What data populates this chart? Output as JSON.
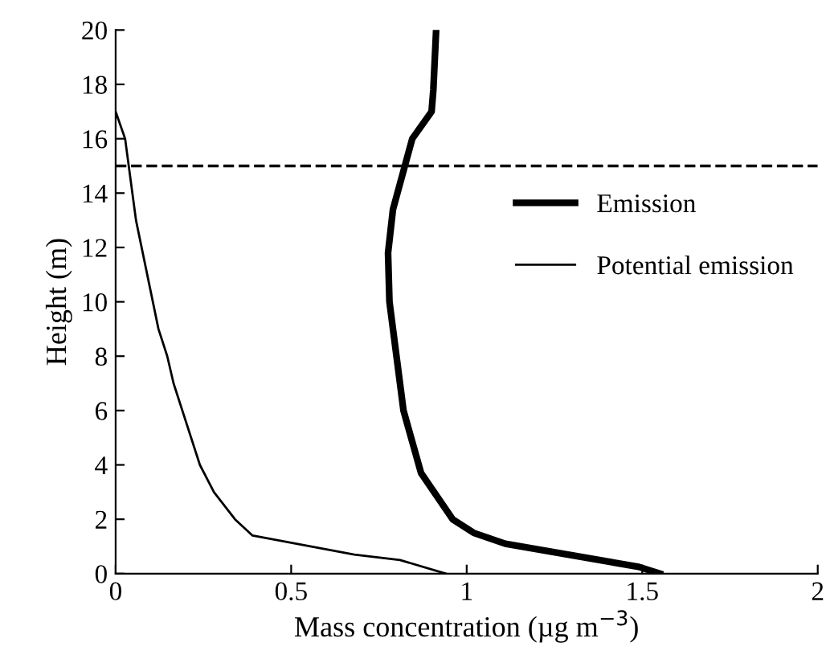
{
  "chart_data": {
    "type": "line",
    "xlabel": "Mass concentration (µg m$^{−3}$)",
    "ylabel": "Height (m)",
    "xlim": [
      0,
      2
    ],
    "xticks": [
      0,
      0.5,
      1,
      1.5,
      2
    ],
    "ylim": [
      0,
      20
    ],
    "yticks": [
      0,
      2,
      4,
      6,
      8,
      10,
      12,
      14,
      16,
      18,
      20
    ],
    "grid": false,
    "legend": "right",
    "marker": "none",
    "series": [
      {
        "name": "Emission",
        "color": "#000000",
        "x": [
          1.55,
          1.49,
          1.11,
          1.02,
          0.96,
          0.87,
          0.82,
          0.8,
          0.78,
          0.776,
          0.79,
          0.845,
          0.9,
          0.905,
          0.913
        ],
        "values": [
          0,
          0.25,
          1.1,
          1.5,
          2,
          3.7,
          6,
          8,
          10,
          11.8,
          13.4,
          16,
          17,
          17.8,
          20
        ]
      },
      {
        "name": "Potential emission",
        "color": "#000000",
        "x": [
          0.94,
          0.81,
          0.68,
          0.39,
          0.34,
          0.28,
          0.24,
          0.165,
          0.147,
          0.122,
          0.058,
          0.027,
          0
        ],
        "values": [
          0,
          0.5,
          0.7,
          1.4,
          2,
          3,
          4,
          7,
          8,
          9,
          13,
          16,
          17
        ]
      }
    ],
    "ref_lines": [
      {
        "axis": "y",
        "value": 15,
        "line_style": "dashed",
        "color": "#000000"
      }
    ]
  }
}
